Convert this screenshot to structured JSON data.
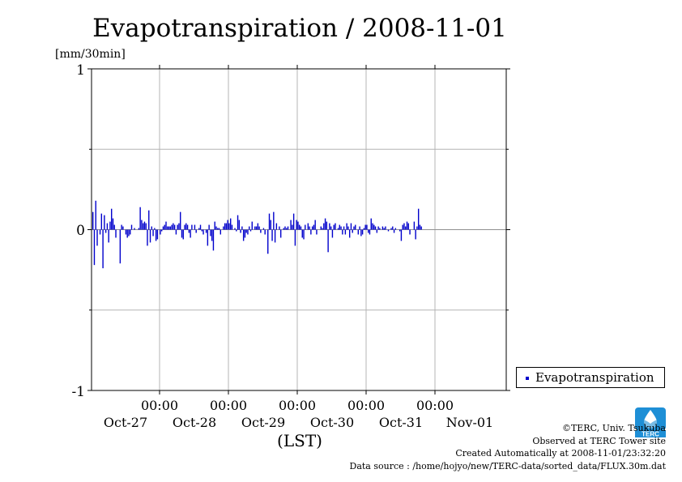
{
  "chart_data": {
    "type": "bar",
    "title": "Evapotranspiration / 2008-11-01",
    "ylabel": "[mm/30min]",
    "xlabel": "(LST)",
    "ylim": [
      -1,
      1
    ],
    "yticks": [
      "1",
      "0",
      "-1"
    ],
    "xticks": [
      {
        "time": "00:00",
        "date": "Oct-27"
      },
      {
        "time": "00:00",
        "date": "Oct-28"
      },
      {
        "time": "00:00",
        "date": "Oct-29"
      },
      {
        "time": "00:00",
        "date": "Oct-30"
      },
      {
        "time": "00:00",
        "date": "Oct-31"
      },
      {
        "time": "",
        "date": "Nov-01"
      }
    ],
    "grid": true,
    "legend_position": "right-bottom",
    "series": [
      {
        "name": "Evapotranspiration",
        "color": "#0000cc",
        "values": [
          0.11,
          -0.22,
          0.18,
          -0.1,
          0.0,
          -0.03,
          0.1,
          -0.24,
          0.09,
          -0.02,
          0.04,
          -0.08,
          0.05,
          0.13,
          0.07,
          0.03,
          -0.05,
          0.0,
          0.0,
          -0.21,
          0.03,
          0.02,
          0.0,
          -0.03,
          -0.05,
          -0.04,
          -0.03,
          0.03,
          0.0,
          0.01,
          0.0,
          0.0,
          0.01,
          0.14,
          0.06,
          0.04,
          0.05,
          0.04,
          -0.1,
          0.12,
          -0.08,
          0.02,
          -0.04,
          0.01,
          -0.07,
          -0.06,
          0.0,
          -0.03,
          -0.01,
          0.02,
          0.03,
          0.05,
          0.02,
          0.02,
          0.02,
          0.03,
          0.04,
          0.03,
          -0.03,
          0.03,
          0.04,
          0.11,
          -0.05,
          -0.06,
          0.03,
          0.04,
          0.03,
          -0.02,
          -0.05,
          0.03,
          0.0,
          0.03,
          -0.02,
          0.0,
          0.01,
          0.03,
          -0.01,
          -0.03,
          0.0,
          -0.02,
          -0.1,
          0.03,
          -0.04,
          -0.07,
          -0.13,
          0.05,
          0.02,
          0.01,
          0.01,
          -0.03,
          0.0,
          0.02,
          0.04,
          0.04,
          0.06,
          0.04,
          0.07,
          0.03,
          0.0,
          0.01,
          -0.01,
          0.09,
          0.06,
          -0.02,
          0.02,
          -0.07,
          -0.05,
          -0.02,
          -0.03,
          0.02,
          -0.01,
          0.05,
          0.0,
          0.02,
          0.02,
          0.04,
          0.02,
          -0.02,
          0.0,
          0.01,
          -0.03,
          0.0,
          -0.15,
          0.1,
          0.06,
          -0.07,
          0.11,
          -0.08,
          0.04,
          0.0,
          0.02,
          -0.05,
          0.0,
          0.01,
          0.02,
          0.01,
          0.02,
          0.0,
          0.06,
          0.03,
          0.1,
          -0.1,
          0.06,
          0.05,
          0.03,
          0.02,
          -0.05,
          -0.06,
          0.03,
          0.0,
          0.04,
          0.02,
          -0.03,
          0.02,
          0.03,
          0.06,
          -0.03,
          0.0,
          0.0,
          0.02,
          0.01,
          0.04,
          0.07,
          0.05,
          -0.14,
          0.04,
          0.02,
          -0.05,
          0.03,
          0.04,
          0.0,
          0.01,
          0.03,
          0.02,
          -0.03,
          0.02,
          -0.03,
          0.04,
          0.02,
          -0.05,
          0.04,
          -0.02,
          0.02,
          0.03,
          0.0,
          -0.03,
          0.02,
          -0.04,
          -0.03,
          0.01,
          0.03,
          0.03,
          -0.02,
          -0.03,
          0.07,
          0.04,
          0.03,
          0.02,
          -0.02,
          0.02,
          0.01,
          0.0,
          0.02,
          0.01,
          0.02,
          0.0,
          -0.01,
          0.0,
          0.01,
          0.02,
          -0.02,
          0.01,
          0.0,
          0.0,
          -0.01,
          -0.07,
          0.03,
          0.04,
          0.02,
          0.05,
          0.04,
          -0.03,
          0.0,
          0.0,
          0.05,
          -0.06,
          0.02,
          0.13,
          0.03,
          0.02
        ]
      }
    ]
  },
  "credits": {
    "copyright": "©TERC, Univ. Tsukuba",
    "observed": "Observed at TERC Tower site",
    "created": "Created Automatically at 2008-11-01/23:32:20",
    "source": "Data source : /home/hojyo/new/TERC-data/sorted_data/FLUX.30m.dat"
  }
}
